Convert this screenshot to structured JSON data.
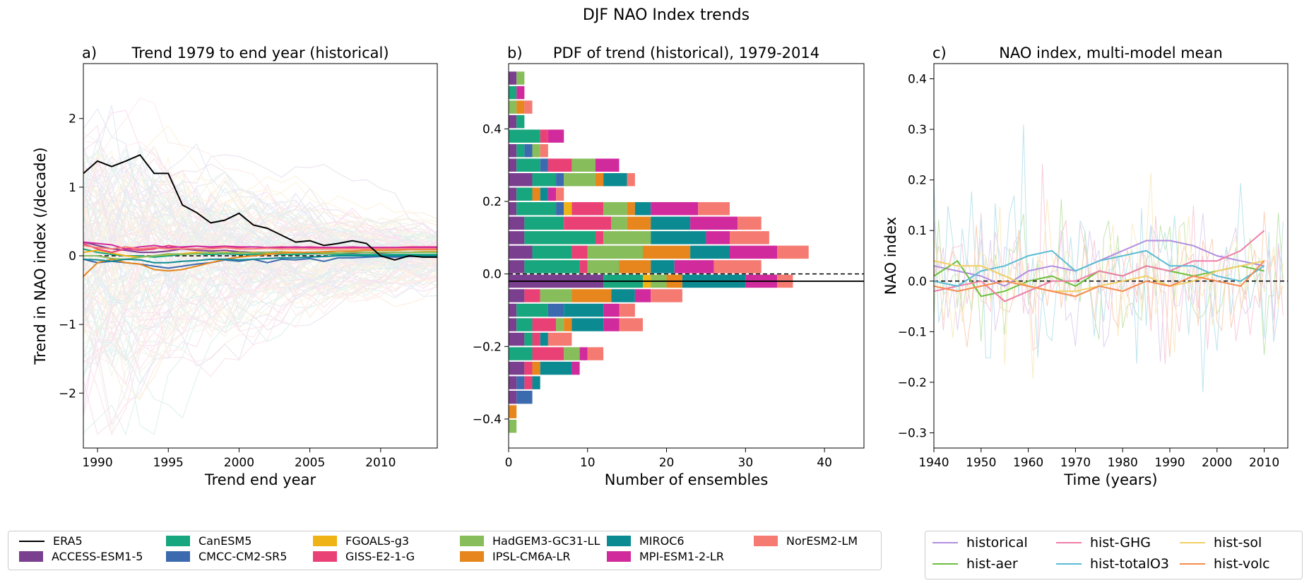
{
  "figure": {
    "suptitle": "DJF NAO Index trends"
  },
  "colors": {
    "ACCESS-ESM1-5": "#7b3f8f",
    "CanESM5": "#17a67d",
    "CMCC-CM2-SR5": "#3b6aae",
    "FGOALS-g3": "#f0b316",
    "GISS-E2-1-G": "#e94176",
    "HadGEM3-GC31-LL": "#87bd5a",
    "IPSL-CM6A-LR": "#e6861c",
    "MIROC6": "#0c8a92",
    "MPI-ESM1-2-LR": "#d12a9d",
    "NorESM2-LM": "#f57b72",
    "ERA5": "#000000",
    "historical": "#b28ee0",
    "hist-aer": "#6cbf3c",
    "hist-GHG": "#f07ea9",
    "hist-totalO3": "#5abcd4",
    "hist-sol": "#f1cf66",
    "hist-volc": "#f58a4e"
  },
  "chart_data": [
    {
      "id": "a",
      "type": "line",
      "panel_label": "a)",
      "title": "Trend 1979 to end year (historical)",
      "xlabel": "Trend end year",
      "ylabel": "Trend in NAO index (/decade)",
      "xlim": [
        1989,
        2014
      ],
      "ylim": [
        -2.8,
        2.8
      ],
      "xticks": [
        1990,
        1995,
        2000,
        2005,
        2010
      ],
      "yticks": [
        -2,
        -1,
        0,
        1,
        2
      ],
      "yticklabels": [
        "−2",
        "−1",
        "0",
        "1",
        "2"
      ],
      "zero_line": "dashed",
      "ensemble_members_faint": true,
      "x": [
        1989,
        1990,
        1991,
        1992,
        1993,
        1994,
        1995,
        1996,
        1997,
        1998,
        1999,
        2000,
        2001,
        2002,
        2003,
        2004,
        2005,
        2006,
        2007,
        2008,
        2009,
        2010,
        2011,
        2012,
        2013,
        2014
      ],
      "series": [
        {
          "name": "ERA5",
          "values": [
            1.2,
            1.38,
            1.3,
            1.38,
            1.47,
            1.2,
            1.2,
            0.74,
            0.63,
            0.48,
            0.52,
            0.62,
            0.45,
            0.4,
            0.3,
            0.2,
            0.22,
            0.15,
            0.18,
            0.22,
            0.18,
            0.0,
            -0.06,
            0.0,
            -0.02,
            -0.02
          ]
        },
        {
          "name": "ACCESS-ESM1-5",
          "values": [
            0.2,
            0.15,
            0.1,
            0.08,
            0.05,
            0.05,
            0.07,
            0.1,
            0.08,
            0.07,
            0.08,
            0.06,
            0.05,
            0.05,
            0.06,
            0.04,
            0.05,
            0.05,
            0.04,
            0.04,
            0.05,
            0.04,
            0.05,
            0.05,
            0.06,
            0.06
          ]
        },
        {
          "name": "CanESM5",
          "values": [
            0.1,
            0.05,
            0.02,
            0.0,
            0.0,
            -0.02,
            0.0,
            0.02,
            0.03,
            0.02,
            0.03,
            0.02,
            0.02,
            0.03,
            0.02,
            0.02,
            0.03,
            0.03,
            0.02,
            0.02,
            0.02,
            0.02,
            0.02,
            0.02,
            0.02,
            0.02
          ]
        },
        {
          "name": "CMCC-CM2-SR5",
          "values": [
            -0.05,
            -0.1,
            -0.08,
            -0.1,
            -0.12,
            -0.15,
            -0.18,
            -0.15,
            -0.12,
            -0.1,
            -0.06,
            -0.08,
            -0.05,
            -0.1,
            -0.05,
            -0.06,
            -0.04,
            -0.08,
            -0.03,
            -0.03,
            -0.02,
            -0.01,
            -0.02,
            -0.01,
            0.0,
            0.0
          ]
        },
        {
          "name": "FGOALS-g3",
          "values": [
            0.05,
            0.08,
            0.04,
            0.0,
            -0.02,
            0.0,
            0.02,
            0.03,
            0.05,
            0.04,
            0.05,
            0.04,
            0.05,
            0.04,
            0.06,
            0.05,
            0.05,
            0.04,
            0.04,
            0.05,
            0.05,
            0.05,
            0.05,
            0.05,
            0.06,
            0.06
          ]
        },
        {
          "name": "GISS-E2-1-G",
          "values": [
            0.18,
            0.1,
            0.05,
            0.1,
            0.08,
            0.1,
            0.15,
            0.12,
            0.14,
            0.12,
            0.13,
            0.12,
            0.13,
            0.12,
            0.13,
            0.12,
            0.13,
            0.12,
            0.12,
            0.13,
            0.12,
            0.12,
            0.12,
            0.13,
            0.13,
            0.13
          ]
        },
        {
          "name": "HadGEM3-GC31-LL",
          "values": [
            0.0,
            0.0,
            -0.04,
            -0.05,
            -0.02,
            0.0,
            0.03,
            0.02,
            0.03,
            0.05,
            0.04,
            0.05,
            0.04,
            0.05,
            0.05,
            0.04,
            0.05,
            0.05,
            0.04,
            0.05,
            0.05,
            0.05,
            0.05,
            0.05,
            0.05,
            0.05
          ]
        },
        {
          "name": "IPSL-CM6A-LR",
          "values": [
            -0.3,
            -0.1,
            -0.05,
            -0.1,
            -0.12,
            -0.2,
            -0.22,
            -0.2,
            -0.15,
            -0.1,
            -0.05,
            -0.02,
            0.0,
            0.02,
            0.04,
            0.05,
            0.05,
            0.06,
            0.07,
            0.07,
            0.08,
            0.08,
            0.08,
            0.09,
            0.09,
            0.09
          ]
        },
        {
          "name": "MIROC6",
          "values": [
            -0.05,
            -0.06,
            -0.08,
            -0.05,
            -0.06,
            -0.1,
            -0.1,
            -0.08,
            -0.07,
            -0.05,
            -0.05,
            -0.06,
            -0.05,
            -0.04,
            -0.03,
            -0.03,
            -0.02,
            -0.01,
            0.0,
            0.0,
            0.0,
            0.0,
            0.0,
            0.0,
            0.0,
            0.0
          ]
        },
        {
          "name": "MPI-ESM1-2-LR",
          "values": [
            0.2,
            0.18,
            0.16,
            0.1,
            0.13,
            0.15,
            0.12,
            0.13,
            0.14,
            0.13,
            0.14,
            0.13,
            0.13,
            0.12,
            0.12,
            0.13,
            0.12,
            0.12,
            0.12,
            0.12,
            0.12,
            0.12,
            0.12,
            0.12,
            0.12,
            0.12
          ]
        },
        {
          "name": "NorESM2-LM",
          "values": [
            0.15,
            0.12,
            0.1,
            0.13,
            0.1,
            0.12,
            0.1,
            0.1,
            0.1,
            0.1,
            0.12,
            0.1,
            0.1,
            0.11,
            0.1,
            0.1,
            0.1,
            0.1,
            0.1,
            0.1,
            0.1,
            0.1,
            0.1,
            0.1,
            0.1,
            0.1
          ]
        }
      ]
    },
    {
      "id": "b",
      "type": "bar",
      "orientation": "horizontal",
      "stacked": true,
      "panel_label": "b)",
      "title": "PDF of trend (historical), 1979-2014",
      "xlabel": "Number of ensembles",
      "ylabel": "",
      "xlim": [
        0,
        45
      ],
      "ylim": [
        -0.48,
        0.58
      ],
      "xticks": [
        0,
        10,
        20,
        30,
        40
      ],
      "yticks": [
        -0.4,
        -0.2,
        0.0,
        0.2,
        0.4
      ],
      "yticklabels": [
        "−0.4",
        "−0.2",
        "0.0",
        "0.2",
        "0.4"
      ],
      "bin_width": 0.04,
      "bin_centers": [
        -0.42,
        -0.38,
        -0.34,
        -0.3,
        -0.26,
        -0.22,
        -0.18,
        -0.14,
        -0.1,
        -0.06,
        -0.02,
        0.02,
        0.06,
        0.1,
        0.14,
        0.18,
        0.22,
        0.26,
        0.3,
        0.34,
        0.38,
        0.42,
        0.46,
        0.5,
        0.54
      ],
      "model_order": [
        "ACCESS-ESM1-5",
        "CanESM5",
        "CMCC-CM2-SR5",
        "FGOALS-g3",
        "GISS-E2-1-G",
        "HadGEM3-GC31-LL",
        "IPSL-CM6A-LR",
        "MIROC6",
        "MPI-ESM1-2-LR",
        "NorESM2-LM"
      ],
      "counts": [
        [
          0,
          0,
          0,
          0,
          0,
          1,
          0,
          0,
          0,
          0
        ],
        [
          0,
          0,
          0,
          0,
          0,
          0,
          1,
          0,
          0,
          0
        ],
        [
          1,
          0,
          2,
          0,
          0,
          0,
          0,
          0,
          0,
          0
        ],
        [
          1,
          0,
          1,
          0,
          1,
          0,
          0,
          1,
          0,
          0
        ],
        [
          2,
          0,
          0,
          0,
          1,
          0,
          1,
          4,
          1,
          0
        ],
        [
          0,
          3,
          0,
          0,
          4,
          2,
          0,
          0,
          1,
          2
        ],
        [
          2,
          1,
          0,
          0,
          1,
          0,
          0,
          1,
          0,
          3
        ],
        [
          1,
          2,
          0,
          0,
          3,
          1,
          1,
          4,
          2,
          3
        ],
        [
          1,
          4,
          2,
          0,
          0,
          0,
          0,
          5,
          2,
          2
        ],
        [
          2,
          0,
          0,
          0,
          2,
          4,
          5,
          3,
          2,
          4
        ],
        [
          12,
          5,
          0,
          1,
          0,
          2,
          2,
          8,
          4,
          2
        ],
        [
          2,
          7,
          0,
          0,
          1,
          4,
          4,
          3,
          5,
          6
        ],
        [
          3,
          5,
          0,
          0,
          2,
          7,
          6,
          5,
          6,
          4
        ],
        [
          2,
          9,
          0,
          0,
          1,
          6,
          0,
          7,
          3,
          5
        ],
        [
          2,
          5,
          0,
          0,
          6,
          2,
          3,
          5,
          6,
          3
        ],
        [
          1,
          5,
          1,
          1,
          4,
          3,
          1,
          2,
          6,
          4
        ],
        [
          1,
          2,
          0,
          0,
          0,
          0,
          1,
          1,
          1,
          1
        ],
        [
          3,
          3,
          1,
          0,
          0,
          4,
          1,
          3,
          0,
          1
        ],
        [
          1,
          3,
          1,
          0,
          3,
          3,
          0,
          0,
          3,
          0
        ],
        [
          1,
          1,
          1,
          0,
          0,
          1,
          0,
          0,
          0,
          1
        ],
        [
          0,
          4,
          0,
          0,
          1,
          0,
          0,
          0,
          2,
          0
        ],
        [
          1,
          1,
          0,
          0,
          0,
          0,
          0,
          0,
          0,
          0
        ],
        [
          0,
          0,
          0,
          0,
          0,
          1,
          1,
          0,
          0,
          1
        ],
        [
          0,
          1,
          0,
          0,
          0,
          0,
          0,
          0,
          1,
          0
        ],
        [
          1,
          0,
          0,
          0,
          0,
          1,
          0,
          0,
          0,
          0
        ]
      ],
      "ERA5_trend": -0.02,
      "zero_line": "dashed"
    },
    {
      "id": "c",
      "type": "line",
      "panel_label": "c)",
      "title": "NAO index, multi-model mean",
      "xlabel": "Time (years)",
      "ylabel": "NAO index",
      "xlim": [
        1940,
        2015
      ],
      "ylim": [
        -0.33,
        0.43
      ],
      "xticks": [
        1940,
        1950,
        1960,
        1970,
        1980,
        1990,
        2000,
        2010
      ],
      "yticks": [
        -0.3,
        -0.2,
        -0.1,
        0.0,
        0.1,
        0.2,
        0.3,
        0.4
      ],
      "yticklabels": [
        "−0.3",
        "−0.2",
        "−0.1",
        "0.0",
        "0.1",
        "0.2",
        "0.3",
        "0.4"
      ],
      "zero_line": "dashed",
      "annual_values_faint": true,
      "x": [
        1940,
        1945,
        1950,
        1955,
        1960,
        1965,
        1970,
        1975,
        1980,
        1985,
        1990,
        1995,
        2000,
        2005,
        2010
      ],
      "series": [
        {
          "name": "historical",
          "values": [
            0.03,
            0.02,
            0.01,
            -0.01,
            0.02,
            0.03,
            0.02,
            0.04,
            0.06,
            0.08,
            0.08,
            0.07,
            0.05,
            0.04,
            0.03
          ]
        },
        {
          "name": "hist-aer",
          "values": [
            0.01,
            0.04,
            -0.03,
            -0.02,
            0.0,
            0.01,
            -0.01,
            0.02,
            0.01,
            0.03,
            0.02,
            0.01,
            0.02,
            0.03,
            0.02
          ]
        },
        {
          "name": "hist-GHG",
          "values": [
            -0.02,
            -0.01,
            0.0,
            -0.04,
            -0.02,
            0.0,
            0.0,
            0.02,
            0.01,
            0.03,
            0.02,
            0.04,
            0.04,
            0.06,
            0.1
          ]
        },
        {
          "name": "hist-totalO3",
          "values": [
            0.0,
            -0.01,
            0.02,
            0.03,
            0.05,
            0.06,
            0.02,
            0.04,
            0.05,
            0.06,
            0.03,
            0.03,
            0.01,
            0.0,
            0.03
          ]
        },
        {
          "name": "hist-sol",
          "values": [
            0.04,
            0.03,
            0.03,
            0.01,
            -0.01,
            -0.02,
            -0.02,
            -0.01,
            0.0,
            0.01,
            -0.01,
            0.0,
            0.02,
            0.03,
            0.04
          ]
        },
        {
          "name": "hist-volc",
          "values": [
            -0.01,
            -0.02,
            -0.01,
            0.0,
            -0.01,
            -0.02,
            -0.03,
            -0.01,
            -0.02,
            0.0,
            -0.01,
            0.01,
            0.0,
            -0.01,
            0.04
          ]
        }
      ]
    }
  ],
  "legend_models": {
    "items": [
      {
        "label": "ERA5",
        "kind": "line"
      },
      {
        "label": "ACCESS-ESM1-5",
        "kind": "patch"
      },
      {
        "label": "CanESM5",
        "kind": "patch"
      },
      {
        "label": "CMCC-CM2-SR5",
        "kind": "patch"
      },
      {
        "label": "FGOALS-g3",
        "kind": "patch"
      },
      {
        "label": "GISS-E2-1-G",
        "kind": "patch"
      },
      {
        "label": "HadGEM3-GC31-LL",
        "kind": "patch"
      },
      {
        "label": "IPSL-CM6A-LR",
        "kind": "patch"
      },
      {
        "label": "MIROC6",
        "kind": "patch"
      },
      {
        "label": "MPI-ESM1-2-LR",
        "kind": "patch"
      },
      {
        "label": "NorESM2-LM",
        "kind": "patch"
      }
    ]
  },
  "legend_experiments": {
    "items": [
      {
        "label": "historical",
        "kind": "line"
      },
      {
        "label": "hist-aer",
        "kind": "line"
      },
      {
        "label": "hist-GHG",
        "kind": "line"
      },
      {
        "label": "hist-totalO3",
        "kind": "line"
      },
      {
        "label": "hist-sol",
        "kind": "line"
      },
      {
        "label": "hist-volc",
        "kind": "line"
      }
    ]
  }
}
